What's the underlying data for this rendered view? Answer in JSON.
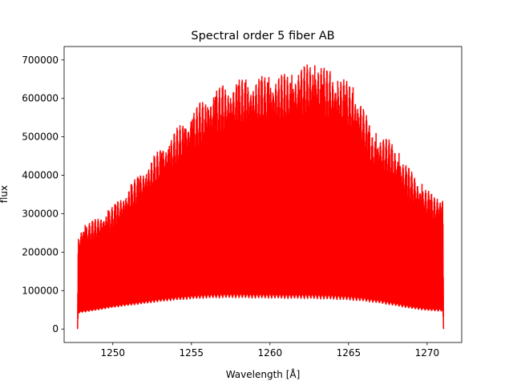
{
  "chart_data": {
    "type": "line",
    "title": "Spectral order 5 fiber AB",
    "xlabel": "Wavelength [Å]",
    "ylabel": "flux",
    "xlim": [
      1246.9,
      1272.2
    ],
    "ylim": [
      -35000,
      735000
    ],
    "x_ticks": [
      1250,
      1255,
      1260,
      1265,
      1270
    ],
    "x_tick_labels": [
      "1250",
      "1255",
      "1260",
      "1265",
      "1270"
    ],
    "y_ticks": [
      0,
      100000,
      200000,
      300000,
      400000,
      500000,
      600000,
      700000
    ],
    "y_tick_labels": [
      "0",
      "100000",
      "200000",
      "300000",
      "400000",
      "500000",
      "600000",
      "700000"
    ],
    "grid": false,
    "series": [
      {
        "color": "#ff0000",
        "upper_envelope": {
          "x": [
            1247.75,
            1247.8,
            1248.0,
            1249.0,
            1250.0,
            1251.0,
            1252.0,
            1253.0,
            1254.0,
            1255.0,
            1256.0,
            1257.0,
            1258.0,
            1259.0,
            1260.0,
            1261.0,
            1262.0,
            1262.7,
            1263.5,
            1264.5,
            1265.2,
            1265.8,
            1266.5,
            1267.0,
            1267.7,
            1268.5,
            1269.5,
            1270.5,
            1271.0,
            1271.05
          ],
          "y": [
            0,
            240000,
            268000,
            290000,
            320000,
            370000,
            420000,
            470000,
            520000,
            565000,
            610000,
            635000,
            650000,
            655000,
            662000,
            665000,
            680000,
            705000,
            680000,
            660000,
            635000,
            600000,
            510000,
            510000,
            490000,
            440000,
            385000,
            345000,
            355000,
            0
          ]
        },
        "lower_envelope": {
          "x": [
            1247.75,
            1247.8,
            1248.0,
            1249.0,
            1250.0,
            1251.0,
            1252.0,
            1253.0,
            1254.0,
            1255.0,
            1256.0,
            1257.0,
            1258.0,
            1259.0,
            1260.0,
            1261.0,
            1262.0,
            1263.0,
            1264.0,
            1265.0,
            1266.0,
            1267.0,
            1268.0,
            1269.0,
            1270.0,
            1271.0,
            1271.05
          ],
          "y": [
            0,
            40000,
            42000,
            48000,
            55000,
            60000,
            65000,
            70000,
            74000,
            77000,
            79000,
            80000,
            80000,
            79000,
            79000,
            78000,
            78000,
            77000,
            76000,
            74000,
            71000,
            66000,
            59000,
            52000,
            47000,
            45000,
            0
          ]
        }
      }
    ]
  }
}
